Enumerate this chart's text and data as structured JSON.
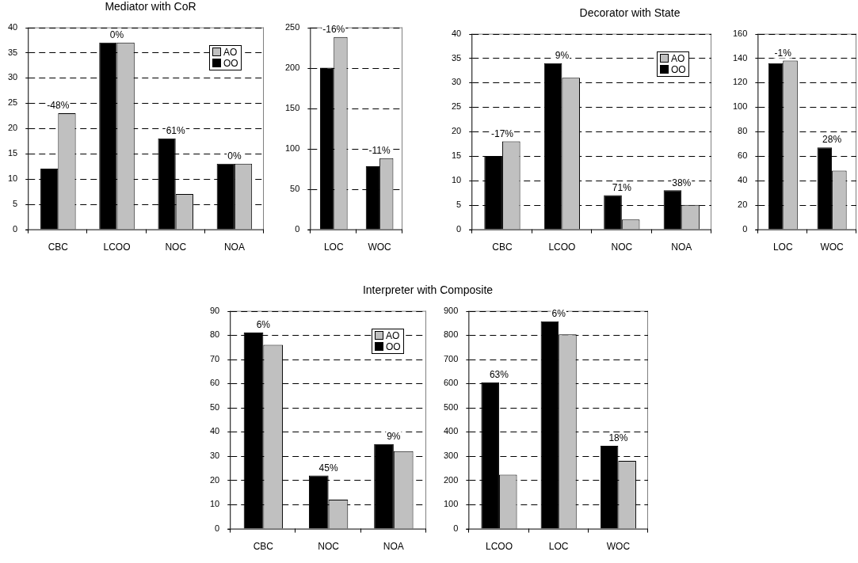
{
  "chart_data": [
    {
      "type": "bar",
      "title": "Mediator with CoR",
      "categories": [
        "CBC",
        "LCOO",
        "NOC",
        "NOA"
      ],
      "series": [
        {
          "name": "OO",
          "color": "#000000",
          "values": [
            12,
            37,
            18,
            13
          ]
        },
        {
          "name": "AO",
          "color": "#c0c0c0",
          "values": [
            23,
            37,
            7,
            13
          ]
        }
      ],
      "ylim": [
        0,
        40
      ],
      "yticks": [
        0,
        5,
        10,
        15,
        20,
        25,
        30,
        35,
        40
      ],
      "grid": "y",
      "legend": "top right",
      "annotations": [
        {
          "text": "-48%",
          "x": "CBC",
          "y": 23
        },
        {
          "text": "0%",
          "x": "LCOO",
          "y": 37
        },
        {
          "text": "61%",
          "x": "NOC",
          "y": 18
        },
        {
          "text": "0%",
          "x": "NOA",
          "y": 13
        }
      ]
    },
    {
      "type": "bar",
      "categories": [
        "LOC",
        "WOC"
      ],
      "series": [
        {
          "color": "#000000",
          "values": [
            200,
            78
          ]
        },
        {
          "color": "#c0c0c0",
          "values": [
            238,
            88
          ]
        }
      ],
      "ylim": [
        0,
        250
      ],
      "yticks": [
        0,
        50,
        100,
        150,
        200,
        250
      ],
      "grid": "y",
      "annotations": [
        {
          "text": "-16%",
          "x": "LOC",
          "y": 238
        },
        {
          "text": "-11%",
          "x": "WOC",
          "y": 88
        }
      ]
    },
    {
      "type": "bar",
      "title": "Decorator with State",
      "categories": [
        "CBC",
        "LCOO",
        "NOC",
        "NOA"
      ],
      "series": [
        {
          "name": "OO",
          "color": "#000000",
          "values": [
            15,
            34,
            7,
            8
          ]
        },
        {
          "name": "AO",
          "color": "#c0c0c0",
          "values": [
            18,
            31,
            2,
            5
          ]
        }
      ],
      "ylim": [
        0,
        40
      ],
      "yticks": [
        0,
        5,
        10,
        15,
        20,
        25,
        30,
        35,
        40
      ],
      "grid": "y",
      "legend": "top right",
      "annotations": [
        {
          "text": "-17%",
          "x": "CBC",
          "y": 18
        },
        {
          "text": "9%",
          "x": "LCOO",
          "y": 34
        },
        {
          "text": "71%",
          "x": "NOC",
          "y": 7
        },
        {
          "text": "38%",
          "x": "NOA",
          "y": 8
        }
      ]
    },
    {
      "type": "bar",
      "categories": [
        "LOC",
        "WOC"
      ],
      "series": [
        {
          "color": "#000000",
          "values": [
            136,
            67
          ]
        },
        {
          "color": "#c0c0c0",
          "values": [
            138,
            48
          ]
        }
      ],
      "ylim": [
        0,
        160
      ],
      "yticks": [
        0,
        20,
        40,
        60,
        80,
        100,
        120,
        140,
        160
      ],
      "grid": "y",
      "annotations": [
        {
          "text": "-1%",
          "x": "LOC",
          "y": 138
        },
        {
          "text": "28%",
          "x": "WOC",
          "y": 67
        }
      ]
    },
    {
      "type": "bar",
      "title": "Interpreter with Composite",
      "categories": [
        "CBC",
        "NOC",
        "NOA"
      ],
      "series": [
        {
          "name": "OO",
          "color": "#000000",
          "values": [
            81,
            22,
            35
          ]
        },
        {
          "name": "AO",
          "color": "#c0c0c0",
          "values": [
            76,
            12,
            32
          ]
        }
      ],
      "ylim": [
        0,
        90
      ],
      "yticks": [
        0,
        10,
        20,
        30,
        40,
        50,
        60,
        70,
        80,
        90
      ],
      "grid": "y",
      "legend": "top right",
      "annotations": [
        {
          "text": "6%",
          "x": "CBC",
          "y": 81
        },
        {
          "text": "45%",
          "x": "NOC",
          "y": 22
        },
        {
          "text": "9%",
          "x": "NOA",
          "y": 35
        }
      ]
    },
    {
      "type": "bar",
      "categories": [
        "LCOO",
        "LOC",
        "WOC"
      ],
      "series": [
        {
          "color": "#000000",
          "values": [
            605,
            857,
            342
          ]
        },
        {
          "color": "#c0c0c0",
          "values": [
            223,
            803,
            280
          ]
        }
      ],
      "ylim": [
        0,
        900
      ],
      "yticks": [
        0,
        100,
        200,
        300,
        400,
        500,
        600,
        700,
        800,
        900
      ],
      "grid": "y",
      "annotations": [
        {
          "text": "63%",
          "x": "LCOO",
          "y": 605
        },
        {
          "text": "6%",
          "x": "LOC",
          "y": 857
        },
        {
          "text": "18%",
          "x": "WOC",
          "y": 342
        }
      ]
    }
  ]
}
